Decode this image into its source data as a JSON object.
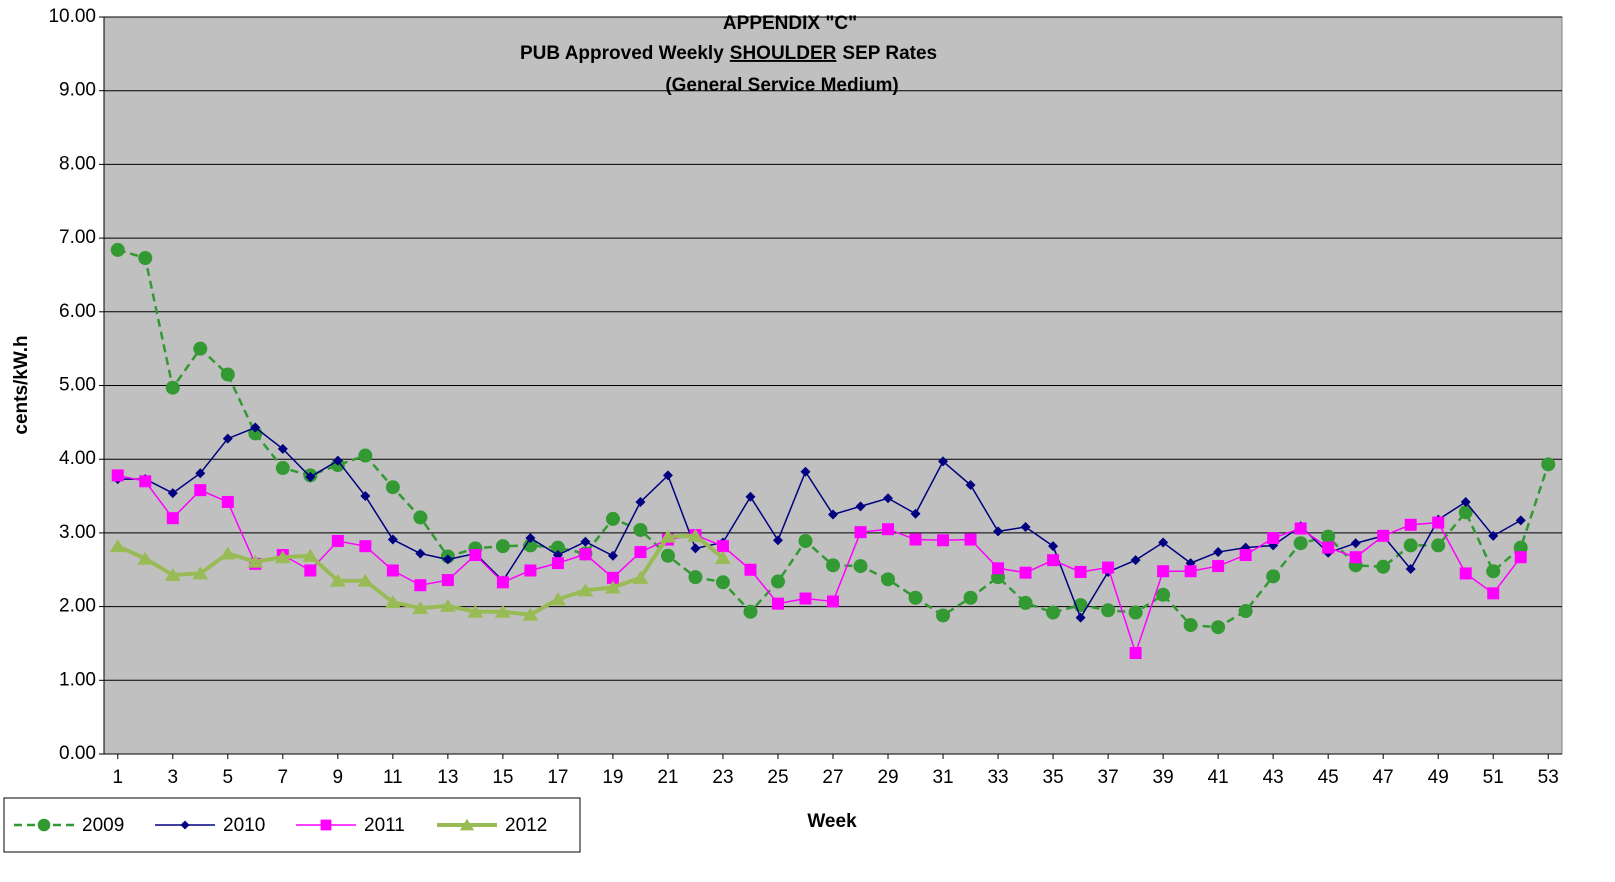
{
  "chart_data": {
    "type": "line",
    "title": [
      "APPENDIX \"C\"",
      [
        "PUB Approved Weekly",
        "SHOULDER",
        "SEP Rates"
      ],
      "(General Service Medium)"
    ],
    "x_label": "Week",
    "y_label": "cents/kW.h",
    "x": [
      1,
      2,
      3,
      4,
      5,
      6,
      7,
      8,
      9,
      10,
      11,
      12,
      13,
      14,
      15,
      16,
      17,
      18,
      19,
      20,
      21,
      22,
      23,
      24,
      25,
      26,
      27,
      28,
      29,
      30,
      31,
      32,
      33,
      34,
      35,
      36,
      37,
      38,
      39,
      40,
      41,
      42,
      43,
      44,
      45,
      46,
      47,
      48,
      49,
      50,
      51,
      52,
      53
    ],
    "xlim": [
      0.5,
      53.5
    ],
    "xticks": [
      1,
      3,
      5,
      7,
      9,
      11,
      13,
      15,
      17,
      19,
      21,
      23,
      25,
      27,
      29,
      31,
      33,
      35,
      37,
      39,
      41,
      43,
      45,
      47,
      49,
      51,
      53
    ],
    "ylim": [
      0,
      10
    ],
    "yticks": [
      {
        "value": 0,
        "label": "0.00"
      },
      {
        "value": 1,
        "label": "1.00"
      },
      {
        "value": 2,
        "label": "2.00"
      },
      {
        "value": 3,
        "label": "3.00"
      },
      {
        "value": 4,
        "label": "4.00"
      },
      {
        "value": 5,
        "label": "5.00"
      },
      {
        "value": 6,
        "label": "6.00"
      },
      {
        "value": 7,
        "label": "7.00"
      },
      {
        "value": 8,
        "label": "8.00"
      },
      {
        "value": 9,
        "label": "9.00"
      },
      {
        "value": 10,
        "label": "10.00"
      }
    ],
    "grid": true,
    "legend": "bottom-left",
    "series": [
      {
        "name": "2009",
        "color": "#339933",
        "marker": "circle",
        "dash": true,
        "values": [
          6.84,
          6.73,
          4.97,
          5.5,
          5.15,
          4.35,
          3.88,
          3.78,
          3.92,
          4.05,
          3.62,
          3.21,
          2.68,
          2.79,
          2.82,
          2.83,
          2.8,
          2.72,
          3.19,
          3.04,
          2.69,
          2.4,
          2.33,
          1.93,
          2.34,
          2.89,
          2.56,
          2.55,
          2.37,
          2.12,
          1.88,
          2.12,
          2.4,
          2.05,
          1.92,
          2.02,
          1.95,
          1.92,
          2.16,
          1.75,
          1.72,
          1.94,
          2.41,
          2.86,
          2.95,
          2.56,
          2.54,
          2.83,
          2.83,
          3.28,
          2.48,
          2.8,
          3.93
        ]
      },
      {
        "name": "2010",
        "color": "#000080",
        "marker": "diamond",
        "values": [
          3.73,
          3.73,
          3.54,
          3.81,
          4.28,
          4.43,
          4.14,
          3.76,
          3.98,
          3.5,
          2.91,
          2.72,
          2.64,
          2.72,
          2.35,
          2.93,
          2.7,
          2.88,
          2.69,
          3.42,
          3.78,
          2.79,
          2.87,
          3.49,
          2.9,
          3.83,
          3.25,
          3.36,
          3.47,
          3.26,
          3.97,
          3.65,
          3.02,
          3.08,
          2.82,
          1.85,
          2.47,
          2.63,
          2.87,
          2.59,
          2.74,
          2.8,
          2.83,
          3.09,
          2.73,
          2.86,
          2.96,
          2.51,
          3.18,
          3.42,
          2.96,
          3.17,
          null
        ]
      },
      {
        "name": "2011",
        "color": "#ff00ff",
        "marker": "square",
        "values": [
          3.78,
          3.7,
          3.2,
          3.58,
          3.42,
          2.58,
          2.7,
          2.49,
          2.89,
          2.82,
          2.49,
          2.29,
          2.36,
          2.7,
          2.33,
          2.49,
          2.59,
          2.71,
          2.39,
          2.74,
          2.91,
          2.97,
          2.82,
          2.5,
          2.04,
          2.11,
          2.07,
          3.01,
          3.05,
          2.91,
          2.9,
          2.91,
          2.52,
          2.46,
          2.63,
          2.47,
          2.53,
          1.37,
          2.48,
          2.48,
          2.55,
          2.7,
          2.93,
          3.06,
          2.8,
          2.67,
          2.96,
          3.11,
          3.14,
          2.45,
          2.18,
          2.67,
          null
        ]
      },
      {
        "name": "2012",
        "color": "#99bb55",
        "marker": "triangle",
        "thick": true,
        "values": [
          2.82,
          2.65,
          2.43,
          2.45,
          2.72,
          2.61,
          2.67,
          2.69,
          2.35,
          2.35,
          2.06,
          1.98,
          2.01,
          1.93,
          1.93,
          1.89,
          2.1,
          2.22,
          2.26,
          2.39,
          2.95,
          2.96,
          2.66,
          null,
          null,
          null,
          null,
          null,
          null,
          null,
          null,
          null,
          null,
          null,
          null,
          null,
          null,
          null,
          null,
          null,
          null,
          null,
          null,
          null,
          null,
          null,
          null,
          null,
          null,
          null,
          null,
          null,
          null
        ]
      }
    ]
  }
}
